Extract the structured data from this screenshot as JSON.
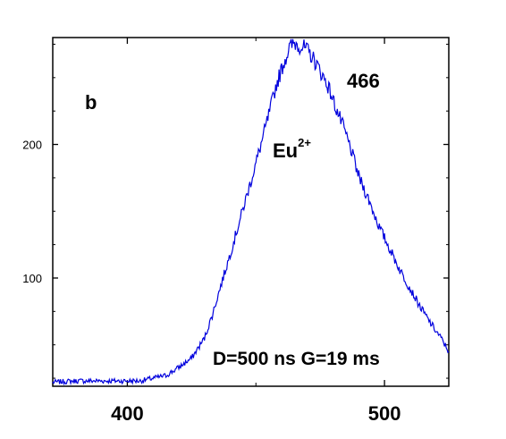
{
  "chart_data": {
    "type": "line",
    "title": "",
    "xlabel": "",
    "ylabel": "",
    "xlim": [
      371,
      525
    ],
    "ylim": [
      19,
      280
    ],
    "x_ticks": [
      400,
      500
    ],
    "y_ticks": [
      100,
      200
    ],
    "grid": false,
    "series": [
      {
        "color": "#0000dd",
        "x": [
          371,
          380,
          390,
          400,
          405,
          410,
          415,
          420,
          425,
          430,
          433,
          436,
          440,
          444,
          448,
          452,
          455,
          458,
          461,
          463,
          465,
          467,
          469,
          471,
          473,
          475,
          478,
          481,
          484,
          487,
          490,
          494,
          498,
          502,
          506,
          510,
          514,
          518,
          522,
          525
        ],
        "values": [
          22,
          23,
          23,
          23,
          23,
          25,
          27,
          33,
          40,
          55,
          72,
          92,
          118,
          145,
          172,
          200,
          222,
          245,
          262,
          272,
          276,
          274,
          272,
          268,
          262,
          255,
          244,
          228,
          213,
          196,
          176,
          158,
          138,
          122,
          106,
          92,
          78,
          66,
          55,
          45
        ]
      }
    ],
    "annotations": {
      "panel_label": "b",
      "peak_label": "466",
      "ion_base": "Eu",
      "ion_charge": "2+",
      "conditions": "D=500 ns G=19 ms"
    }
  }
}
